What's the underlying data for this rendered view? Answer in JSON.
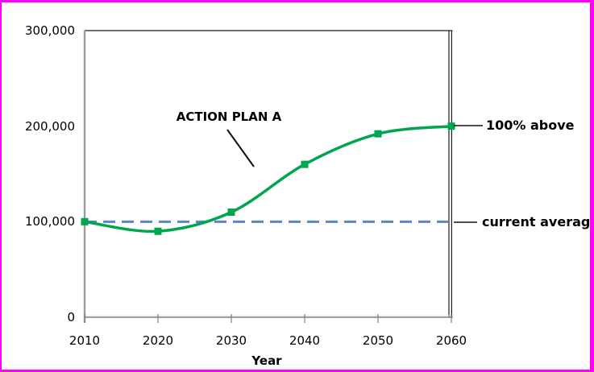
{
  "window": {
    "type": "chart-image",
    "background": "#ffffff",
    "border_color": "#ff00ff"
  },
  "chart_data": {
    "type": "line",
    "title": "",
    "xlabel": "Year",
    "ylabel": "",
    "x": [
      2010,
      2020,
      2030,
      2040,
      2050,
      2060
    ],
    "series": [
      {
        "name": "ACTION PLAN A",
        "values": [
          100000,
          90000,
          110000,
          160000,
          192000,
          200000
        ],
        "color": "#00a550",
        "marker": "square",
        "marker_size": 9,
        "line_width": 3.5,
        "line_style": "solid",
        "smooth": true
      }
    ],
    "reference_line": {
      "label": "current average",
      "value": 100000,
      "color": "#5b85c4",
      "style": "dashed",
      "line_width": 3
    },
    "xlim": [
      2010,
      2060
    ],
    "ylim": [
      0,
      300000
    ],
    "xticks": [
      2010,
      2020,
      2030,
      2040,
      2050,
      2060
    ],
    "xtick_labels": [
      "2010",
      "2020",
      "2030",
      "2040",
      "2050",
      "2060"
    ],
    "yticks": [
      0,
      100000,
      200000,
      300000
    ],
    "ytick_labels": [
      "0",
      "100,000",
      "200,000",
      "300,000"
    ],
    "grid": false,
    "legend": "none",
    "axis_color": "#9b9b9b",
    "plot_border_color": "#1a1a1a",
    "annotations": [
      {
        "text": "ACTION PLAN A",
        "style": "bold",
        "points_to": "rising part of curve near 2033"
      },
      {
        "text": "100% above",
        "style": "bold",
        "points_to": "end point at 2060 (200,000)"
      },
      {
        "text": "current average",
        "style": "bold",
        "points_to": "dashed reference line at 100,000"
      }
    ]
  }
}
